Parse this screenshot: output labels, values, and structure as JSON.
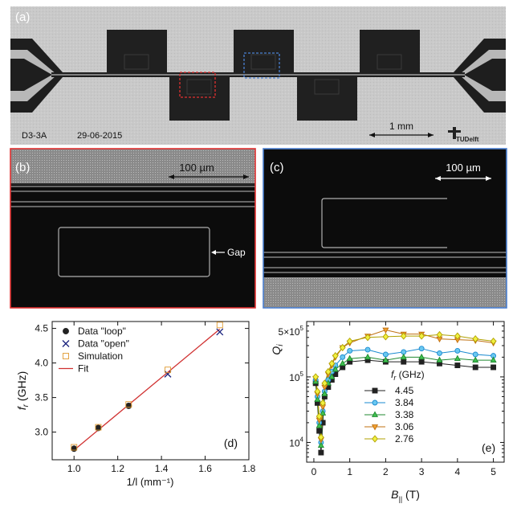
{
  "panel_a": {
    "label": "(a)",
    "sample_id": "D3-3A",
    "date": "29-06-2015",
    "scale_label": "1 mm",
    "logo_text": "TUDelft"
  },
  "panel_b": {
    "label": "(b)",
    "scale_label": "100 µm",
    "gap_label": "Gap",
    "frame_color": "#e03030"
  },
  "panel_c": {
    "label": "(c)",
    "scale_label": "100 µm",
    "frame_color": "#4a7fd0"
  },
  "chart_data": [
    {
      "type": "scatter",
      "panel_label": "(d)",
      "xlabel": "1/l (mm⁻¹)",
      "ylabel_main": "f",
      "ylabel_sub": "r",
      "ylabel_unit": " (GHz)",
      "xlim": [
        0.9,
        1.8
      ],
      "ylim": [
        2.6,
        4.6
      ],
      "xticks": [
        "1.0",
        "1.2",
        "1.4",
        "1.6",
        "1.8"
      ],
      "xtick_values": [
        1.0,
        1.2,
        1.4,
        1.6,
        1.8
      ],
      "yticks": [
        "3.0",
        "3.5",
        "4.0",
        "4.5"
      ],
      "ytick_values": [
        3.0,
        3.5,
        4.0,
        4.5
      ],
      "legend_position": "top-left",
      "series": [
        {
          "name": "Data \"loop\"",
          "marker": "circle",
          "color": "#222222",
          "x": [
            1.0,
            1.111,
            1.25
          ],
          "y": [
            2.76,
            3.06,
            3.38
          ]
        },
        {
          "name": "Data \"open\"",
          "marker": "x",
          "color": "#1a237e",
          "x": [
            1.429,
            1.667
          ],
          "y": [
            3.84,
            4.45
          ]
        },
        {
          "name": "Simulation",
          "marker": "square-open",
          "color": "#e09a30",
          "x": [
            1.0,
            1.111,
            1.25,
            1.429,
            1.667
          ],
          "y": [
            2.78,
            3.07,
            3.4,
            3.9,
            4.55
          ]
        },
        {
          "name": "Fit",
          "marker": "line",
          "color": "#d03030",
          "x": [
            1.0,
            1.667
          ],
          "y": [
            2.74,
            4.49
          ]
        }
      ]
    },
    {
      "type": "line",
      "panel_label": "(e)",
      "xlabel_main": "B",
      "xlabel_sub": "||",
      "xlabel_unit": " (T)",
      "ylabel_main": "Q",
      "ylabel_sub": "i",
      "yscale": "log",
      "xlim": [
        -0.2,
        5.3
      ],
      "ylim": [
        5000,
        700000
      ],
      "xticks": [
        "0",
        "1",
        "2",
        "3",
        "4",
        "5"
      ],
      "xtick_values": [
        0,
        1,
        2,
        3,
        4,
        5
      ],
      "yticks_log": [
        {
          "value": 10000,
          "base": "10",
          "exp": "4"
        },
        {
          "value": 100000,
          "base": "10",
          "exp": "5"
        },
        {
          "value": 500000,
          "base": "5×10",
          "exp": "5"
        }
      ],
      "legend_title_main": "f",
      "legend_title_sub": "r",
      "legend_title_unit": " (GHz)",
      "legend_position": "center-right",
      "series": [
        {
          "name": "4.45",
          "marker": "square",
          "color": "#222222",
          "fill": "#222222",
          "x": [
            0.05,
            0.1,
            0.15,
            0.2,
            0.25,
            0.3,
            0.4,
            0.5,
            0.6,
            0.8,
            1.0,
            1.5,
            2.0,
            2.5,
            3.0,
            3.5,
            4.0,
            4.5,
            5.0
          ],
          "y": [
            80000,
            40000,
            15000,
            7000,
            20000,
            50000,
            70000,
            90000,
            110000,
            140000,
            170000,
            180000,
            170000,
            170000,
            170000,
            160000,
            150000,
            140000,
            140000
          ]
        },
        {
          "name": "3.84",
          "marker": "circle",
          "color": "#1a8ad0",
          "fill": "#6ac8f0",
          "x": [
            0.05,
            0.1,
            0.15,
            0.2,
            0.25,
            0.3,
            0.4,
            0.5,
            0.6,
            0.8,
            1.0,
            1.5,
            2.0,
            2.5,
            3.0,
            3.5,
            4.0,
            4.5,
            5.0
          ],
          "y": [
            90000,
            50000,
            20000,
            10000,
            30000,
            60000,
            90000,
            120000,
            150000,
            200000,
            250000,
            260000,
            220000,
            240000,
            270000,
            230000,
            250000,
            220000,
            210000
          ]
        },
        {
          "name": "3.38",
          "marker": "triangle-up",
          "color": "#208a30",
          "fill": "#40c050",
          "x": [
            0.05,
            0.1,
            0.15,
            0.2,
            0.25,
            0.3,
            0.4,
            0.5,
            0.6,
            0.8,
            1.0,
            1.5,
            2.0,
            2.5,
            3.0,
            3.5,
            4.0,
            4.5,
            5.0
          ],
          "y": [
            85000,
            45000,
            18000,
            9000,
            28000,
            55000,
            80000,
            100000,
            130000,
            160000,
            190000,
            200000,
            180000,
            200000,
            200000,
            180000,
            190000,
            180000,
            180000
          ]
        },
        {
          "name": "3.06",
          "marker": "triangle-down",
          "color": "#c07010",
          "fill": "#f0a030",
          "x": [
            0.05,
            0.1,
            0.15,
            0.2,
            0.25,
            0.3,
            0.4,
            0.5,
            0.6,
            0.8,
            1.0,
            1.5,
            2.0,
            2.5,
            3.0,
            3.5,
            4.0,
            4.5,
            5.0
          ],
          "y": [
            95000,
            55000,
            22000,
            11000,
            35000,
            70000,
            110000,
            150000,
            200000,
            280000,
            330000,
            420000,
            520000,
            450000,
            450000,
            380000,
            370000,
            360000,
            330000
          ]
        },
        {
          "name": "2.76",
          "marker": "diamond",
          "color": "#b0a000",
          "fill": "#f0f040",
          "x": [
            0.05,
            0.1,
            0.15,
            0.2,
            0.25,
            0.3,
            0.4,
            0.5,
            0.6,
            0.8,
            1.0,
            1.5,
            2.0,
            2.5,
            3.0,
            3.5,
            4.0,
            4.5,
            5.0
          ],
          "y": [
            100000,
            60000,
            25000,
            12000,
            40000,
            80000,
            120000,
            160000,
            210000,
            280000,
            350000,
            400000,
            410000,
            420000,
            420000,
            440000,
            420000,
            380000,
            350000
          ]
        }
      ]
    }
  ]
}
